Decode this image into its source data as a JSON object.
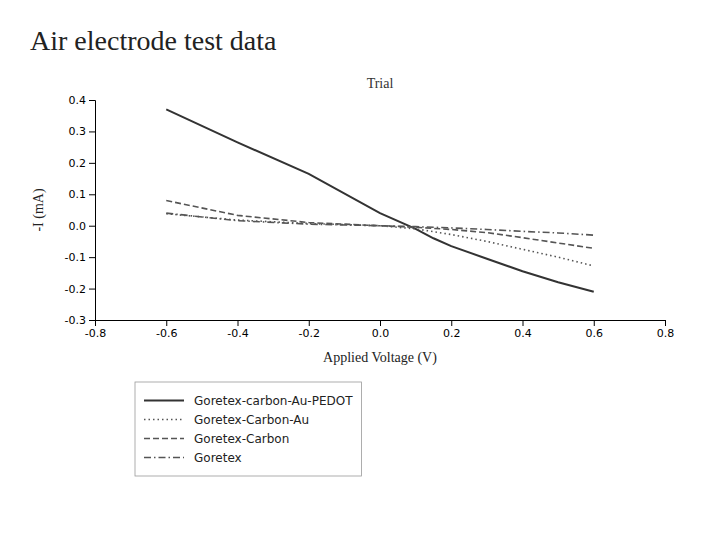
{
  "chart_data": {
    "type": "line",
    "title": "Air electrode test data",
    "subtitle": "Trial",
    "x_label": "Applied Voltage (V)",
    "y_label": "-I (mA)",
    "xlim": [
      -0.8,
      0.8
    ],
    "ylim": [
      -0.3,
      0.4
    ],
    "xticks": [
      -0.8,
      -0.6,
      -0.4,
      -0.2,
      {
        "value": 0.0,
        "label": "0.0"
      },
      0.2,
      0.4,
      0.6,
      0.8
    ],
    "yticks": [
      -0.3,
      -0.2,
      -0.1,
      {
        "value": 0.0,
        "label": "0.0"
      },
      0.1,
      0.2,
      0.3,
      0.4
    ],
    "grid": false,
    "legend": "bottom",
    "series": [
      {
        "name": "Goretex-carbon-Au-PEDOT",
        "color": "#333333",
        "line_style": "solid",
        "x": [
          -0.6,
          -0.4,
          -0.2,
          0.0,
          0.1,
          0.15,
          0.2,
          0.3,
          0.4,
          0.5,
          0.6
        ],
        "values": [
          0.37,
          0.265,
          0.165,
          0.04,
          -0.01,
          -0.04,
          -0.065,
          -0.105,
          -0.145,
          -0.18,
          -0.21
        ]
      },
      {
        "name": "Goretex-Carbon-Au",
        "color": "#555555",
        "line_style": "dotted",
        "x": [
          -0.6,
          -0.4,
          -0.2,
          0.0,
          0.1,
          0.2,
          0.3,
          0.4,
          0.5,
          0.6
        ],
        "values": [
          0.038,
          0.018,
          0.007,
          0.0,
          -0.01,
          -0.028,
          -0.05,
          -0.075,
          -0.1,
          -0.128
        ]
      },
      {
        "name": "Goretex-Carbon",
        "color": "#555555",
        "line_style": "dashed",
        "x": [
          -0.6,
          -0.4,
          -0.2,
          0.0,
          0.1,
          0.2,
          0.3,
          0.4,
          0.5,
          0.6
        ],
        "values": [
          0.08,
          0.033,
          0.01,
          0.0,
          -0.005,
          -0.012,
          -0.022,
          -0.038,
          -0.055,
          -0.072
        ]
      },
      {
        "name": "Goretex",
        "color": "#555555",
        "line_style": "dashdot",
        "x": [
          -0.6,
          -0.4,
          -0.2,
          0.0,
          0.1,
          0.2,
          0.3,
          0.4,
          0.5,
          0.6
        ],
        "values": [
          0.04,
          0.016,
          0.005,
          0.0,
          -0.003,
          -0.007,
          -0.012,
          -0.018,
          -0.023,
          -0.03
        ]
      }
    ]
  }
}
